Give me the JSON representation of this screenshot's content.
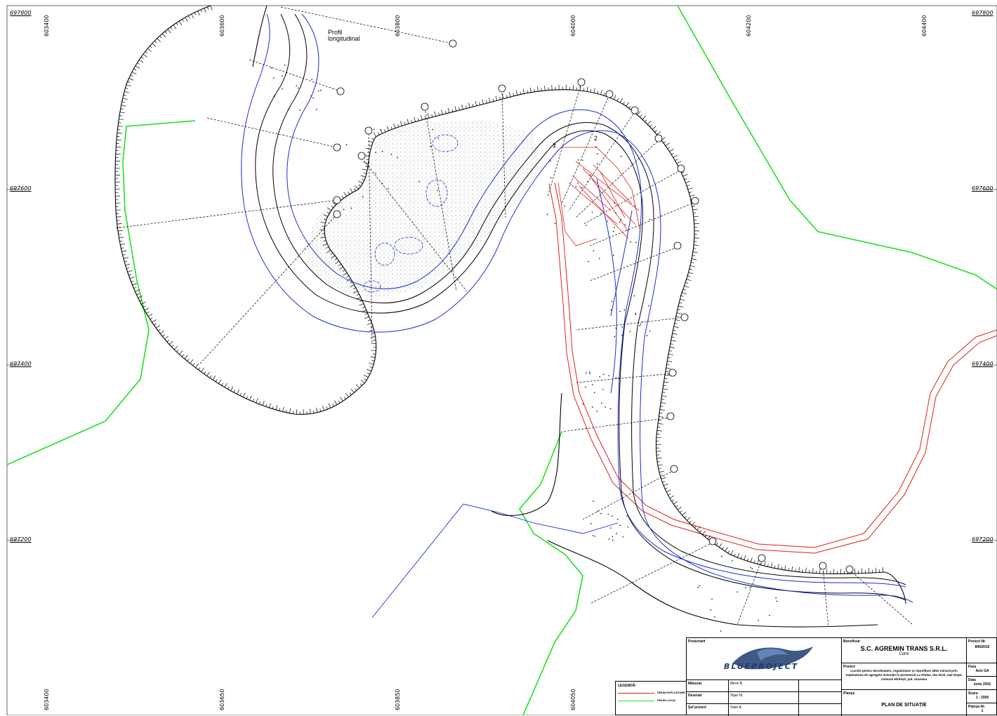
{
  "map": {
    "grid": {
      "northing_labels": [
        "697800",
        "697600",
        "697400",
        "697200"
      ],
      "easting_labels_top": [
        "603400",
        "603600",
        "603800",
        "604000",
        "604200",
        "604400"
      ],
      "easting_labels_bottom": [
        "603400",
        "603650",
        "603850",
        "604050"
      ]
    },
    "annotations": {
      "profil_longitudinal": "Profil longitudinal",
      "point_1": "1",
      "point_2": "2"
    },
    "colors": {
      "contour_black": "#000000",
      "edge_blue": "#1a2fd1",
      "road_red": "#e0201a",
      "local_road_green": "#1fe01f"
    }
  },
  "title_block": {
    "proiectant_label": "Proiectant",
    "logo_text": "BLUEPROJECT",
    "beneficiar_label": "Beneficiar",
    "company_name": "S.C. AGREMIN TRANS S.R.L.",
    "company_city": "Comi",
    "proiect_nr_label": "Proiect Nr.",
    "proiect_nr": "840/2015",
    "proiect_label": "Proiect",
    "proiect_text": "Lucrări pentru decolmatare, regularizare şi reprofilare albie minoră prin exploatarea de agregate minerale în perimetrul La Stulea, râu Siret, mal drept, comuna Hîrtiești, jud. Suceava",
    "faza_label": "Faza",
    "faza_value": "Aviz GA",
    "data_label": "Data",
    "data_value": "iunie 2016",
    "planșa_label": "Planșa",
    "plan_title": "PLAN DE SITUAȚIE",
    "scara_label": "Scara",
    "scara_value": "1 : 2000",
    "planșa_nr_label": "Planșa Nr.",
    "planșa_nr_value": "1",
    "roles": [
      {
        "role": "Măsurat",
        "name": "Miron B."
      },
      {
        "role": "Desenat",
        "name": "Viţan M."
      },
      {
        "role": "Şef proiect",
        "name": "Viţan A."
      }
    ]
  },
  "legend": {
    "title": "LEGENDĂ:",
    "items": [
      {
        "label": "DRUM EXPLOATARE",
        "color": "#e0201a"
      },
      {
        "label": "DRUM LOCAL",
        "color": "#1fe01f"
      }
    ]
  }
}
